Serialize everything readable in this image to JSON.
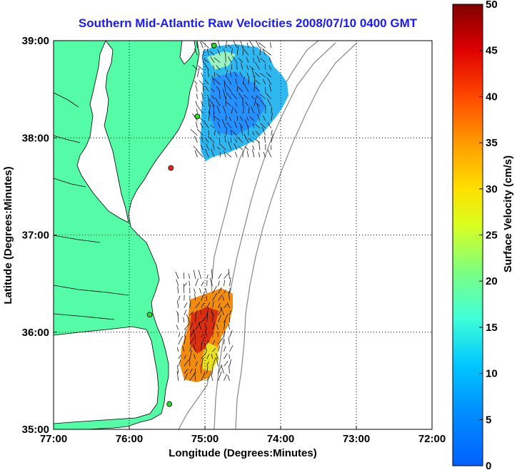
{
  "title": "Southern Mid-Atlantic Raw Velocities 2008/07/10 0400 GMT",
  "chart_data": {
    "type": "map",
    "xlabel": "Longitude (Degrees:Minutes)",
    "ylabel": "Latitude (Degrees:Minutes)",
    "xlim": [
      -77,
      -72
    ],
    "ylim": [
      35,
      39
    ],
    "x_ticks": [
      {
        "value": -77,
        "label": "77:00"
      },
      {
        "value": -76,
        "label": "76:00"
      },
      {
        "value": -75,
        "label": "75:00"
      },
      {
        "value": -74,
        "label": "74:00"
      },
      {
        "value": -73,
        "label": "73:00"
      },
      {
        "value": -72,
        "label": "72:00"
      }
    ],
    "y_ticks": [
      {
        "value": 39,
        "label": "39:00"
      },
      {
        "value": 38,
        "label": "38:00"
      },
      {
        "value": 37,
        "label": "37:00"
      },
      {
        "value": 36,
        "label": "36:00"
      },
      {
        "value": 35,
        "label": "35:00"
      }
    ],
    "grid": "dotted",
    "colorbar": {
      "label": "Surface Velocity (cm/s)",
      "min": 0,
      "max": 50,
      "ticks": [
        0,
        5,
        10,
        15,
        20,
        25,
        30,
        35,
        40,
        45,
        50
      ],
      "colormap": "jet"
    },
    "stations": [
      {
        "lon": -74.88,
        "lat": 38.95,
        "color": "#22dd22"
      },
      {
        "lon": -75.1,
        "lat": 38.22,
        "color": "#22dd22"
      },
      {
        "lon": -75.45,
        "lat": 37.69,
        "color": "#ee2222"
      },
      {
        "lon": -75.73,
        "lat": 36.18,
        "color": "#22dd22"
      },
      {
        "lon": -75.47,
        "lat": 35.26,
        "color": "#22dd22"
      }
    ],
    "velocity_regions": [
      {
        "name": "north",
        "lon_range": [
          -75.1,
          -74.1
        ],
        "lat_range": [
          37.8,
          39.0
        ],
        "speed_range": [
          5,
          20
        ]
      },
      {
        "name": "south",
        "lon_range": [
          -75.35,
          -74.6
        ],
        "lat_range": [
          35.5,
          36.6
        ],
        "speed_range": [
          20,
          50
        ]
      }
    ],
    "colors": {
      "land": "#55fca8",
      "water": "#ffffff",
      "coast": "#000000",
      "bathymetry": "#888888"
    }
  }
}
